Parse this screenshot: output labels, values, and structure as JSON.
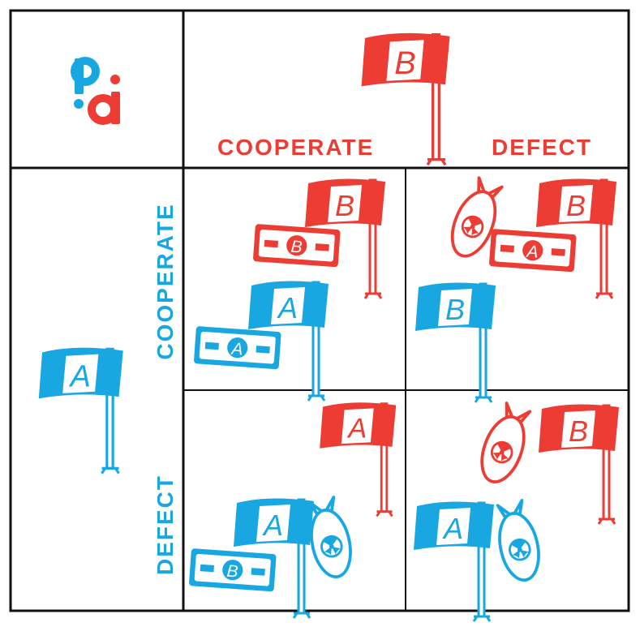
{
  "colors": {
    "red": "#ec3c34",
    "blue": "#19a7e2",
    "border": "#111111"
  },
  "logo": {
    "left_letter": "p",
    "right_letter": "d"
  },
  "column_header": {
    "player_flag": "B",
    "options": [
      "COOPERATE",
      "DEFECT"
    ]
  },
  "row_header": {
    "player_flag": "A",
    "options": [
      "COOPERATE",
      "DEFECT"
    ]
  },
  "cells": {
    "cc": {
      "red_flag": "B",
      "red_bill": "B",
      "blue_flag": "A",
      "blue_bill": "A"
    },
    "cd": {
      "red_flag": "B",
      "red_bill": "A",
      "blue_flag": "B"
    },
    "dc": {
      "red_flag": "A",
      "blue_flag": "A",
      "blue_bill": "B"
    },
    "dd": {
      "red_flag": "B",
      "blue_flag": "A"
    }
  }
}
